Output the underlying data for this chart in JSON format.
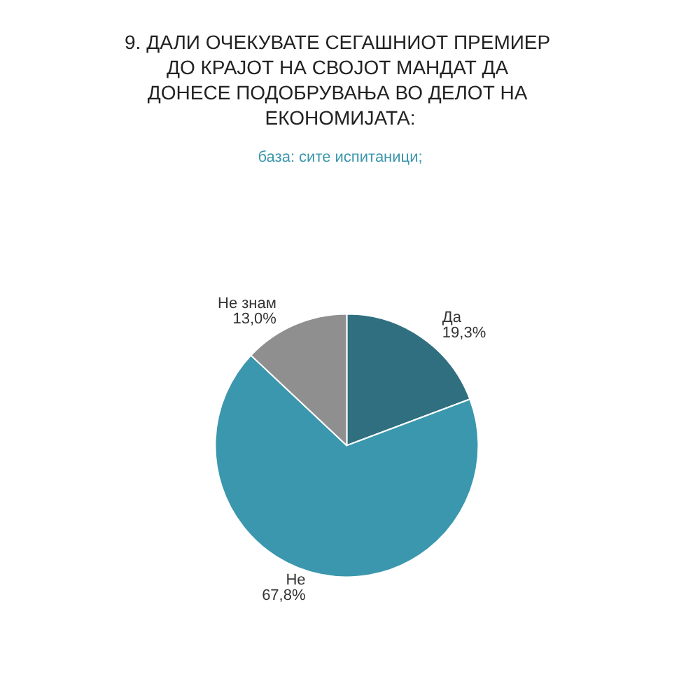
{
  "chart_data": {
    "type": "pie",
    "title": "9. ДАЛИ ОЧЕКУВАТЕ СЕГАШНИОТ ПРЕМИЕР ДО КРАЈОТ НА СВОЈОТ МАНДАТ ДА ДОНЕСЕ ПОДОБРУВАЊА ВО ДЕЛОТ НА ЕКОНОМИЈАТА:",
    "subtitle": "база: сите испитаници;",
    "categories": [
      "Да",
      "Не",
      "Не знам"
    ],
    "values": [
      19.3,
      67.8,
      13.0
    ],
    "value_labels": [
      "19,3%",
      "67,8%",
      "13,0%"
    ],
    "colors": [
      "#2f6f80",
      "#3b97ad",
      "#8f8f8f"
    ],
    "legend": false
  }
}
